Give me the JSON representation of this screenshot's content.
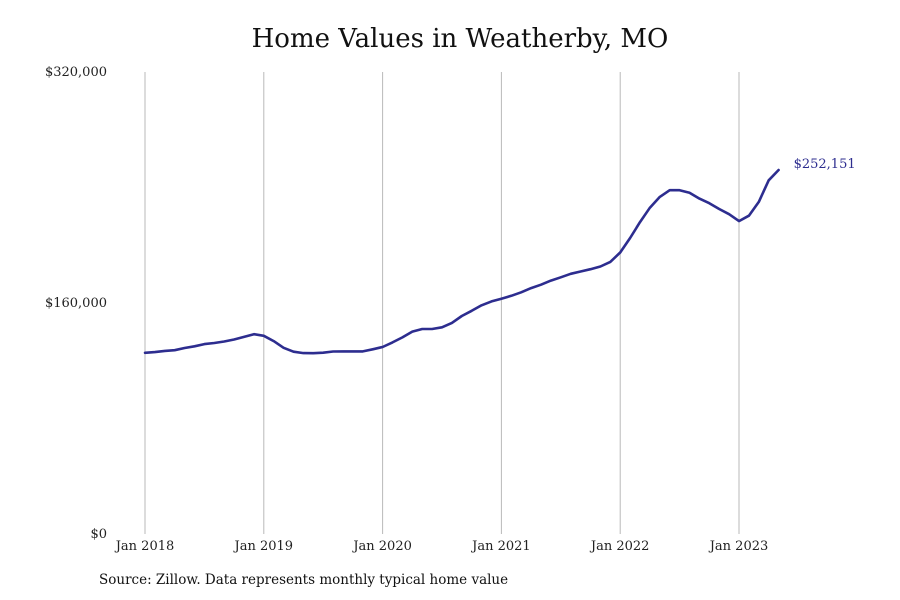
{
  "chart_data": {
    "type": "line",
    "title": "Home Values in Weatherby, MO",
    "source": "Source: Zillow. Data represents monthly typical home value",
    "xlabel": "",
    "ylabel": "",
    "ylim": [
      0,
      320000
    ],
    "xlim": [
      "2018-01",
      "2023-12"
    ],
    "y_ticks": [
      0,
      160000,
      320000
    ],
    "y_tick_labels": [
      "$0",
      "$160,000",
      "$320,000"
    ],
    "x_ticks": [
      "2018-01",
      "2019-01",
      "2020-01",
      "2021-01",
      "2022-01",
      "2023-01"
    ],
    "x_tick_labels": [
      "Jan 2018",
      "Jan 2019",
      "Jan 2020",
      "Jan 2021",
      "Jan 2022",
      "Jan 2023"
    ],
    "grid": "vertical",
    "line_color": "#2d2d8f",
    "end_label": "$252,151",
    "series": [
      {
        "x": [
          "2018-01",
          "2018-02",
          "2018-03",
          "2018-04",
          "2018-05",
          "2018-06",
          "2018-07",
          "2018-08",
          "2018-09",
          "2018-10",
          "2018-11",
          "2018-12",
          "2019-01",
          "2019-02",
          "2019-03",
          "2019-04",
          "2019-05",
          "2019-06",
          "2019-07",
          "2019-08",
          "2019-09",
          "2019-10",
          "2019-11",
          "2019-12",
          "2020-01",
          "2020-02",
          "2020-03",
          "2020-04",
          "2020-05",
          "2020-06",
          "2020-07",
          "2020-08",
          "2020-09",
          "2020-10",
          "2020-11",
          "2020-12",
          "2021-01",
          "2021-02",
          "2021-03",
          "2021-04",
          "2021-05",
          "2021-06",
          "2021-07",
          "2021-08",
          "2021-09",
          "2021-10",
          "2021-11",
          "2021-12",
          "2022-01",
          "2022-02",
          "2022-03",
          "2022-04",
          "2022-05",
          "2022-06",
          "2022-07",
          "2022-08",
          "2022-09",
          "2022-10",
          "2022-11",
          "2022-12",
          "2023-01",
          "2023-02",
          "2023-03",
          "2023-04",
          "2023-05"
        ],
        "values": [
          125500,
          126000,
          126800,
          127300,
          128800,
          130000,
          131500,
          132300,
          133300,
          134700,
          136500,
          138400,
          137300,
          133600,
          129000,
          126300,
          125300,
          125200,
          125600,
          126400,
          126500,
          126500,
          126500,
          127900,
          129500,
          132700,
          136200,
          140200,
          142000,
          142000,
          143200,
          146200,
          151000,
          154600,
          158400,
          161100,
          163000,
          165000,
          167400,
          170300,
          172700,
          175500,
          177800,
          180200,
          181800,
          183400,
          185300,
          188500,
          195000,
          205000,
          216000,
          226000,
          233500,
          238100,
          238100,
          236400,
          232300,
          229100,
          225100,
          221500,
          216700,
          220500,
          230000,
          245000,
          252151
        ]
      }
    ]
  }
}
